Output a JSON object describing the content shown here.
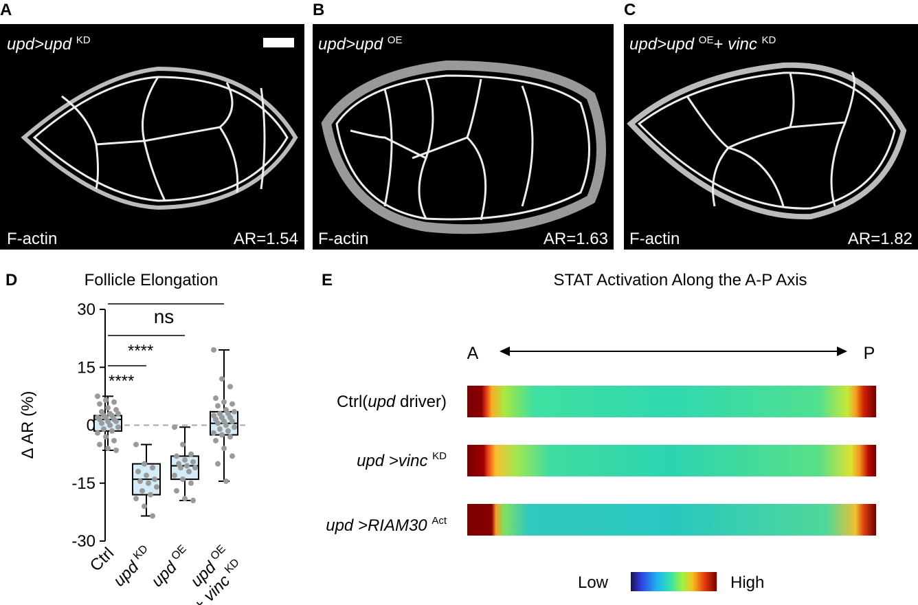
{
  "panels": [
    {
      "letter": "A",
      "genotype": [
        "upd>upd",
        "KD"
      ],
      "stain": "F-actin",
      "ar": "AR=1.54"
    },
    {
      "letter": "B",
      "genotype": [
        "upd>upd",
        "OE"
      ],
      "stain": "F-actin",
      "ar": "AR=1.63"
    },
    {
      "letter": "C",
      "genotype": [
        "upd>upd",
        "OE",
        "+ ",
        "vinc",
        "KD"
      ],
      "stain": "F-actin",
      "ar": "AR=1.82"
    }
  ],
  "chart_data": {
    "type": "box",
    "letter": "D",
    "title": "Follicle Elongation",
    "ylabel": "Δ AR (%)",
    "ylim": [
      -30,
      30
    ],
    "yticks": [
      -30,
      -15,
      0,
      15,
      30
    ],
    "zero_line": true,
    "box_color": "#d3ecf7",
    "point_color": "#9a9a9a",
    "categories": [
      [
        "Ctrl"
      ],
      [
        "upd",
        "KD"
      ],
      [
        "upd",
        "OE"
      ],
      [
        "upd",
        "OE",
        "+ ",
        "vinc",
        "KD"
      ]
    ],
    "boxes": [
      {
        "min": -6.5,
        "q1": -1.5,
        "median": 1.5,
        "q3": 2.5,
        "max": 7.5,
        "points": [
          7.5,
          6.5,
          6,
          5.5,
          4.5,
          4,
          3.5,
          3,
          3,
          2.5,
          2.5,
          2,
          2,
          1.5,
          1.5,
          1,
          1,
          0.5,
          0,
          -0.5,
          -1,
          -1.5,
          -2,
          -3,
          -4,
          -5,
          -6,
          -6.5
        ]
      },
      {
        "min": -23.5,
        "q1": -18,
        "median": -14,
        "q3": -10,
        "max": -5,
        "points": [
          -5,
          -10,
          -11,
          -12,
          -13,
          -14,
          -14.5,
          -15,
          -16,
          -17,
          -18,
          -19,
          -21,
          -23.5
        ]
      },
      {
        "min": -19.5,
        "q1": -14,
        "median": -10.5,
        "q3": -8,
        "max": -0.5,
        "points": [
          -0.5,
          -5,
          -7.5,
          -8,
          -9,
          -9.5,
          -10,
          -10.5,
          -11,
          -11,
          -12,
          -13,
          -14,
          -15,
          -17,
          -19,
          -19.5
        ]
      },
      {
        "min": -14.5,
        "q1": -2.5,
        "median": 0.5,
        "q3": 3.5,
        "max": 19.5,
        "points": [
          19.5,
          12,
          10,
          7,
          6,
          5.5,
          5,
          4,
          3.5,
          3,
          3,
          2.5,
          2,
          2,
          1.5,
          1,
          1,
          0.5,
          0,
          -0.5,
          -1,
          -1.5,
          -2,
          -2.5,
          -3,
          -4,
          -6,
          -8,
          -10,
          -14.5
        ]
      }
    ],
    "annotations": [
      "****",
      "****",
      "ns"
    ]
  },
  "heatmap": {
    "letter": "E",
    "title": "STAT Activation Along the A-P Axis",
    "left": "A",
    "right": "P",
    "rows": [
      [
        "Ctrl(",
        "upd",
        " driver)"
      ],
      [
        "upd >vinc",
        "KD"
      ],
      [
        "upd >RIAM30",
        "Act"
      ]
    ],
    "legend_low": "Low",
    "legend_high": "High"
  }
}
